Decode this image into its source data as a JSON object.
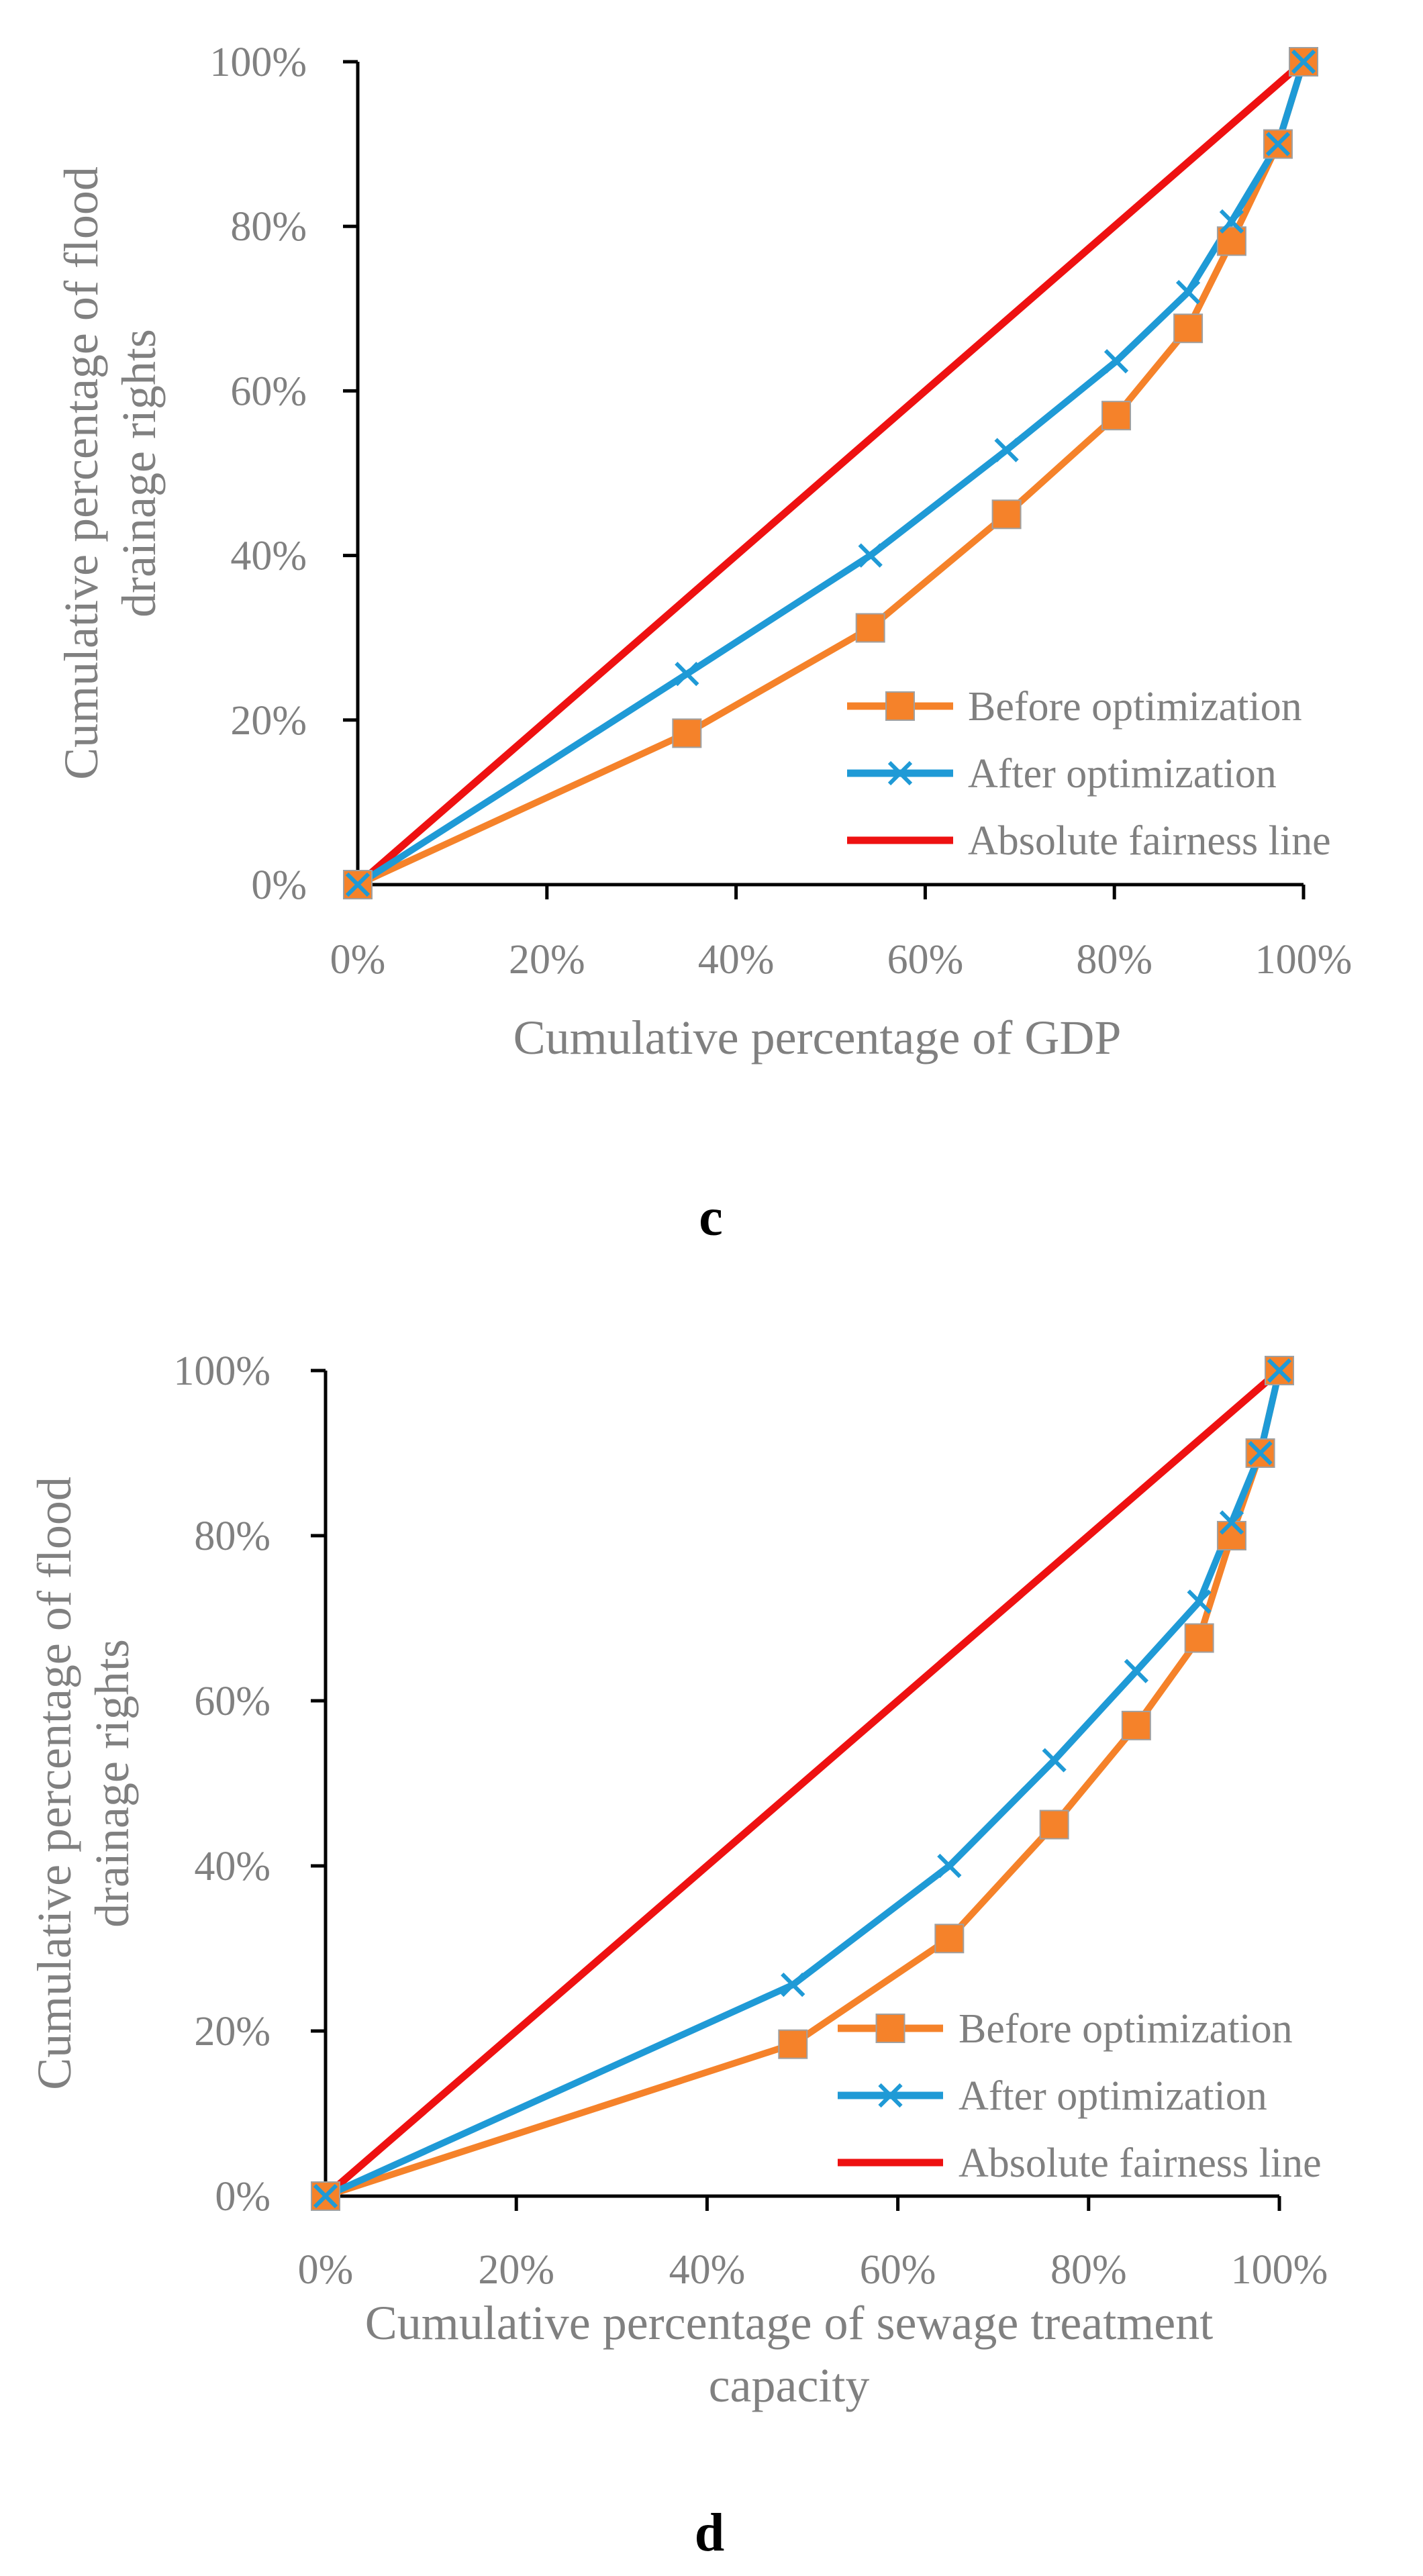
{
  "chart_data": [
    {
      "type": "line",
      "panel_label": "c",
      "xlabel": "Cumulative percentage of GDP",
      "xlabel_lines": [
        "Cumulative percentage of GDP"
      ],
      "ylabel_lines": [
        "Cumulative percentage of flood",
        "drainage rights"
      ],
      "xlim": [
        0,
        100
      ],
      "ylim": [
        0,
        100
      ],
      "x_ticks": [
        "0%",
        "20%",
        "40%",
        "60%",
        "80%",
        "100%"
      ],
      "y_ticks": [
        "0%",
        "20%",
        "40%",
        "60%",
        "80%",
        "100%"
      ],
      "legend_position": "bottom-right",
      "series": [
        {
          "name": "Before optimization",
          "color": "#F5822A",
          "marker": "square",
          "x": [
            0,
            34.8,
            54.2,
            68.6,
            80.2,
            87.8,
            92.4,
            97.3,
            100
          ],
          "y": [
            0,
            18.4,
            31.2,
            45.0,
            57.0,
            67.6,
            78.2,
            90.0,
            100
          ]
        },
        {
          "name": "After optimization",
          "color": "#1F9AD6",
          "marker": "x",
          "x": [
            0,
            34.8,
            54.2,
            68.6,
            80.2,
            87.8,
            92.4,
            97.3,
            100
          ],
          "y": [
            0,
            25.6,
            40.0,
            52.8,
            63.6,
            72.0,
            80.6,
            90.0,
            100
          ]
        },
        {
          "name": "Absolute fairness line",
          "color": "#EE1111",
          "marker": "none",
          "x": [
            0,
            100
          ],
          "y": [
            0,
            100
          ]
        }
      ]
    },
    {
      "type": "line",
      "panel_label": "d",
      "xlabel": "Cumulative percentage of sewage treatment capacity",
      "xlabel_lines": [
        "Cumulative percentage of sewage treatment",
        "capacity"
      ],
      "ylabel_lines": [
        "Cumulative percentage of flood",
        "drainage rights"
      ],
      "xlim": [
        0,
        100
      ],
      "ylim": [
        0,
        100
      ],
      "x_ticks": [
        "0%",
        "20%",
        "40%",
        "60%",
        "80%",
        "100%"
      ],
      "y_ticks": [
        "0%",
        "20%",
        "40%",
        "60%",
        "80%",
        "100%"
      ],
      "legend_position": "bottom-right",
      "series": [
        {
          "name": "Before optimization",
          "color": "#F5822A",
          "marker": "square",
          "x": [
            0,
            49.0,
            65.4,
            76.4,
            85.0,
            91.6,
            95.0,
            98.0,
            100
          ],
          "y": [
            0,
            18.4,
            31.2,
            45.0,
            57.0,
            67.6,
            80.0,
            90.0,
            100
          ]
        },
        {
          "name": "After optimization",
          "color": "#1F9AD6",
          "marker": "x",
          "x": [
            0,
            49.0,
            65.4,
            76.4,
            85.0,
            91.6,
            95.0,
            98.0,
            100
          ],
          "y": [
            0,
            25.6,
            40.0,
            52.8,
            63.6,
            72.0,
            81.6,
            90.0,
            100
          ]
        },
        {
          "name": "Absolute fairness line",
          "color": "#EE1111",
          "marker": "none",
          "x": [
            0,
            100
          ],
          "y": [
            0,
            100
          ]
        }
      ]
    }
  ]
}
